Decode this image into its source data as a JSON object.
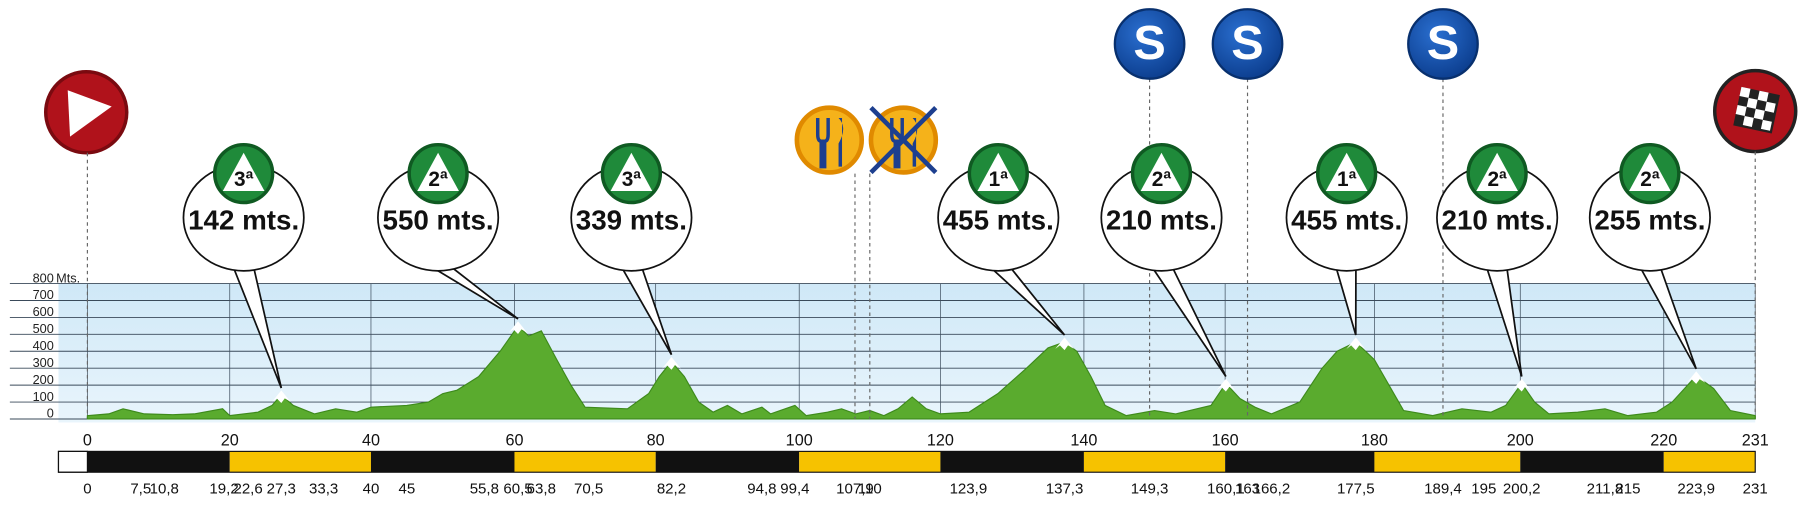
{
  "chart_data": {
    "type": "area",
    "ylabel": "Mts.",
    "ylim": [
      0,
      800
    ],
    "yticks": [
      0,
      100,
      200,
      300,
      400,
      500,
      600,
      700,
      800
    ],
    "xlim": [
      0,
      231
    ],
    "xticks": [
      0,
      20,
      40,
      60,
      80,
      100,
      120,
      140,
      160,
      180,
      200,
      220,
      231
    ],
    "grid": true,
    "color": "#5aab2e",
    "x": [
      0,
      3,
      5,
      8,
      12,
      15,
      19,
      20,
      24,
      26,
      27.3,
      29,
      32,
      35,
      38,
      40,
      45,
      48,
      50,
      52,
      55,
      58,
      60.5,
      62,
      63.8,
      66,
      68,
      70,
      76,
      79,
      80.5,
      82.2,
      84,
      86,
      88,
      90,
      92,
      94.8,
      96,
      99.4,
      101,
      104,
      106,
      108,
      110,
      112,
      114,
      116,
      118,
      120,
      124,
      128,
      132,
      135,
      137.3,
      139,
      141,
      143,
      146,
      150,
      153,
      156,
      158,
      160.1,
      162,
      164,
      166.2,
      170,
      173,
      175,
      177.5,
      180,
      182,
      184,
      188,
      192,
      196,
      198,
      200.2,
      202,
      204,
      208,
      211.8,
      215,
      219,
      221,
      223.9,
      226,
      228,
      231
    ],
    "values": [
      20,
      30,
      60,
      30,
      25,
      30,
      60,
      20,
      40,
      80,
      142,
      80,
      30,
      60,
      40,
      70,
      80,
      100,
      150,
      170,
      250,
      400,
      550,
      490,
      520,
      350,
      200,
      70,
      60,
      150,
      250,
      339,
      250,
      100,
      40,
      80,
      30,
      70,
      30,
      80,
      20,
      40,
      60,
      30,
      50,
      20,
      60,
      130,
      60,
      30,
      40,
      150,
      300,
      420,
      455,
      400,
      250,
      80,
      20,
      50,
      30,
      60,
      80,
      210,
      120,
      70,
      30,
      100,
      300,
      400,
      455,
      350,
      200,
      50,
      20,
      60,
      40,
      80,
      210,
      100,
      30,
      40,
      60,
      20,
      40,
      100,
      255,
      180,
      50,
      20
    ],
    "climbs": [
      {
        "km": 27.3,
        "category": "3ª",
        "label": "142 mts."
      },
      {
        "km": 60.5,
        "category": "2ª",
        "label": "550 mts."
      },
      {
        "km": 82.2,
        "category": "3ª",
        "label": "339 mts."
      },
      {
        "km": 137.3,
        "category": "1ª",
        "label": "455 mts."
      },
      {
        "km": 160.1,
        "category": "2ª",
        "label": "210 mts."
      },
      {
        "km": 177.5,
        "category": "1ª",
        "label": "455 mts."
      },
      {
        "km": 200.2,
        "category": "2ª",
        "label": "210 mts."
      },
      {
        "km": 223.9,
        "category": "2ª",
        "label": "255 mts."
      }
    ],
    "sprints": [
      {
        "km": 149.3,
        "icon": "S"
      },
      {
        "km": 163,
        "icon": "S"
      },
      {
        "km": 189.4,
        "icon": "S"
      }
    ],
    "feed_zone": [
      107.9,
      110
    ],
    "km_points": [
      {
        "value": 0,
        "label": "0"
      },
      {
        "value": 7.5,
        "label": "7,5"
      },
      {
        "value": 10.8,
        "label": "10,8"
      },
      {
        "value": 19.2,
        "label": "19,2"
      },
      {
        "value": 22.6,
        "label": "22,6"
      },
      {
        "value": 27.3,
        "label": "27,3"
      },
      {
        "value": 33.3,
        "label": "33,3"
      },
      {
        "value": 40,
        "label": "40"
      },
      {
        "value": 45,
        "label": "45"
      },
      {
        "value": 55.8,
        "label": "55,8"
      },
      {
        "value": 60.5,
        "label": "60,5"
      },
      {
        "value": 63.8,
        "label": "63,8"
      },
      {
        "value": 70.5,
        "label": "70,5"
      },
      {
        "value": 82.2,
        "label": "82,2"
      },
      {
        "value": 94.8,
        "label": "94,8"
      },
      {
        "value": 99.4,
        "label": "99,4"
      },
      {
        "value": 107.9,
        "label": "107,9"
      },
      {
        "value": 110,
        "label": "110"
      },
      {
        "value": 123.9,
        "label": "123,9"
      },
      {
        "value": 137.3,
        "label": "137,3"
      },
      {
        "value": 149.3,
        "label": "149,3"
      },
      {
        "value": 160.1,
        "label": "160,1"
      },
      {
        "value": 163,
        "label": "163"
      },
      {
        "value": 166.2,
        "label": "166,2"
      },
      {
        "value": 177.5,
        "label": "177,5"
      },
      {
        "value": 189.4,
        "label": "189,4"
      },
      {
        "value": 195,
        "label": "195"
      },
      {
        "value": 200.2,
        "label": "200,2"
      },
      {
        "value": 211.8,
        "label": "211,8"
      },
      {
        "value": 215,
        "label": "215"
      },
      {
        "value": 223.9,
        "label": "223,9"
      },
      {
        "value": 231,
        "label": "231"
      }
    ]
  }
}
